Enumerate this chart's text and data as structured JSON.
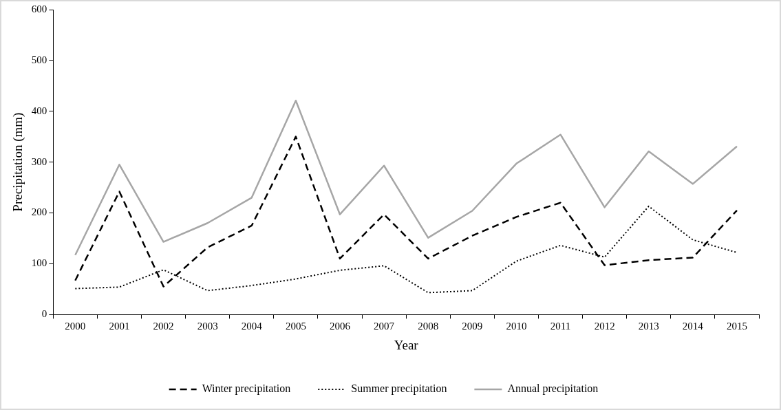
{
  "chart_data": {
    "type": "line",
    "xlabel": "Year",
    "ylabel": "Precipitation (mm)",
    "categories": [
      "2000",
      "2001",
      "2002",
      "2003",
      "2004",
      "2005",
      "2006",
      "2007",
      "2008",
      "2009",
      "2010",
      "2011",
      "2012",
      "2013",
      "2014",
      "2015"
    ],
    "series": [
      {
        "name": "Winter precipitation",
        "color": "#000000",
        "line_style": "dashed",
        "values": [
          67,
          242,
          55,
          132,
          175,
          350,
          110,
          197,
          110,
          155,
          192,
          220,
          97,
          107,
          112,
          205
        ]
      },
      {
        "name": "Summer precipitation",
        "color": "#000000",
        "line_style": "dotted",
        "values": [
          51,
          54,
          88,
          47,
          57,
          70,
          87,
          96,
          43,
          47,
          105,
          136,
          113,
          213,
          147,
          122
        ]
      },
      {
        "name": "Annual precipitation",
        "color": "#a6a6a6",
        "line_style": "solid",
        "values": [
          117,
          295,
          143,
          180,
          230,
          421,
          197,
          293,
          151,
          204,
          297,
          354,
          211,
          321,
          257,
          331
        ]
      }
    ],
    "ylim": [
      0,
      600
    ],
    "yticks": [
      0,
      100,
      200,
      300,
      400,
      500,
      600
    ],
    "grid": false,
    "legend": "bottom",
    "marker": "none"
  }
}
